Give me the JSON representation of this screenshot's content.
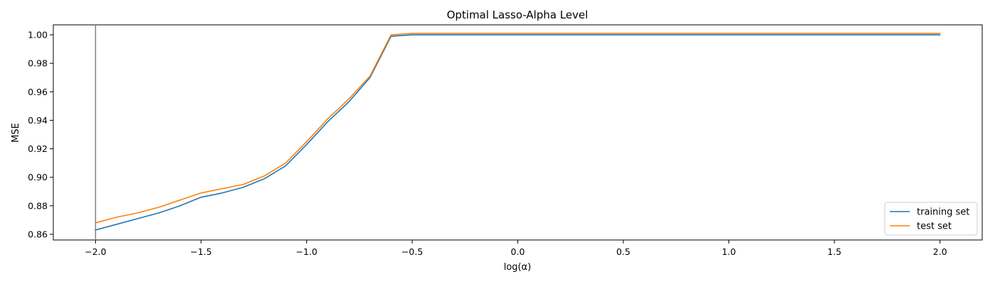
{
  "chart_data": {
    "type": "line",
    "title": "Optimal Lasso-Alpha Level",
    "xlabel": "log(α)",
    "ylabel": "MSE",
    "xlim": [
      -2.2,
      2.2
    ],
    "ylim": [
      0.856,
      1.007
    ],
    "xticks": [
      -2.0,
      -1.5,
      -1.0,
      -0.5,
      0.0,
      0.5,
      1.0,
      1.5,
      2.0
    ],
    "xtick_labels": [
      "−2.0",
      "−1.5",
      "−1.0",
      "−0.5",
      "0.0",
      "0.5",
      "1.0",
      "1.5",
      "2.0"
    ],
    "yticks": [
      0.86,
      0.88,
      0.9,
      0.92,
      0.94,
      0.96,
      0.98,
      1.0
    ],
    "ytick_labels": [
      "0.86",
      "0.88",
      "0.90",
      "0.92",
      "0.94",
      "0.96",
      "0.98",
      "1.00"
    ],
    "vline_x": -2.0,
    "grid": false,
    "legend_position": "lower-right",
    "x": [
      -2.0,
      -1.9,
      -1.8,
      -1.7,
      -1.6,
      -1.5,
      -1.4,
      -1.3,
      -1.2,
      -1.1,
      -1.0,
      -0.9,
      -0.8,
      -0.7,
      -0.6,
      -0.5,
      -0.4,
      0.0,
      0.5,
      1.0,
      1.5,
      2.0
    ],
    "series": [
      {
        "name": "training set",
        "color": "#1f77b4",
        "values": [
          0.863,
          0.867,
          0.871,
          0.875,
          0.88,
          0.886,
          0.889,
          0.893,
          0.899,
          0.908,
          0.923,
          0.939,
          0.953,
          0.97,
          0.999,
          1.0,
          1.0,
          1.0,
          1.0,
          1.0,
          1.0,
          1.0
        ]
      },
      {
        "name": "test set",
        "color": "#ff7f0e",
        "values": [
          0.868,
          0.872,
          0.875,
          0.879,
          0.884,
          0.889,
          0.892,
          0.895,
          0.901,
          0.91,
          0.925,
          0.941,
          0.955,
          0.971,
          1.0,
          1.001,
          1.001,
          1.001,
          1.001,
          1.001,
          1.001,
          1.001
        ]
      }
    ]
  }
}
